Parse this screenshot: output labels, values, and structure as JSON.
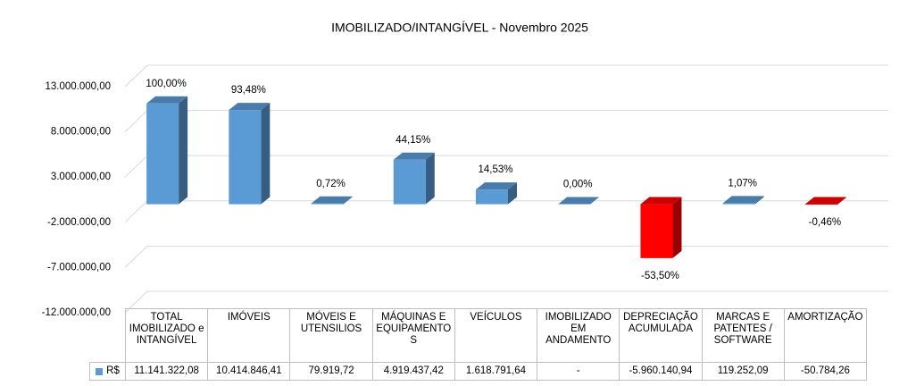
{
  "chart_data": {
    "type": "bar3d",
    "title": "IMOBILIZADO/INTANGÍVEL - Novembro 2025",
    "categories": [
      "TOTAL IMOBILIZADO e INTANGÍVEL",
      "IMÓVEIS",
      "MÓVEIS E UTENSILIOS",
      "MÁQUINAS E EQUIPAMENTOS",
      "VEÍCULOS",
      "IMOBILIZADO EM ANDAMENTO",
      "DEPRECIAÇÃO ACUMULADA",
      "MARCAS E PATENTES / SOFTWARE",
      "AMORTIZAÇÃO"
    ],
    "series": [
      {
        "name": "R$",
        "color": "#5b9bd5",
        "negative_color": "#ff0000",
        "values": [
          11141322.08,
          10414846.41,
          79919.72,
          4919437.42,
          1618791.64,
          0,
          -5960140.94,
          119252.09,
          -50784.26
        ],
        "value_labels": [
          "11.141.322,08",
          "10.414.846,41",
          "79.919,72",
          "4.919.437,42",
          "1.618.791,64",
          "-",
          "-5.960.140,94",
          "119.252,09",
          "-50.784,26"
        ],
        "percentages": [
          100,
          93.48,
          0.72,
          44.15,
          14.53,
          0,
          -53.5,
          1.07,
          -0.46
        ],
        "percent_labels": [
          "100,00%",
          "93,48%",
          "0,72%",
          "44,15%",
          "14,53%",
          "0,00%",
          "-53,50%",
          "1,07%",
          "-0,46%"
        ]
      }
    ],
    "ylim": [
      -12000000,
      13000000
    ],
    "yticks": [
      {
        "value": -12000000,
        "label": "-12.000.000,00"
      },
      {
        "value": -7000000,
        "label": "-7.000.000,00"
      },
      {
        "value": -2000000,
        "label": "-2.000.000,00"
      },
      {
        "value": 3000000,
        "label": "3.000.000,00"
      },
      {
        "value": 8000000,
        "label": "8.000.000,00"
      },
      {
        "value": 13000000,
        "label": "13.000.000,00"
      }
    ],
    "grid": true
  }
}
